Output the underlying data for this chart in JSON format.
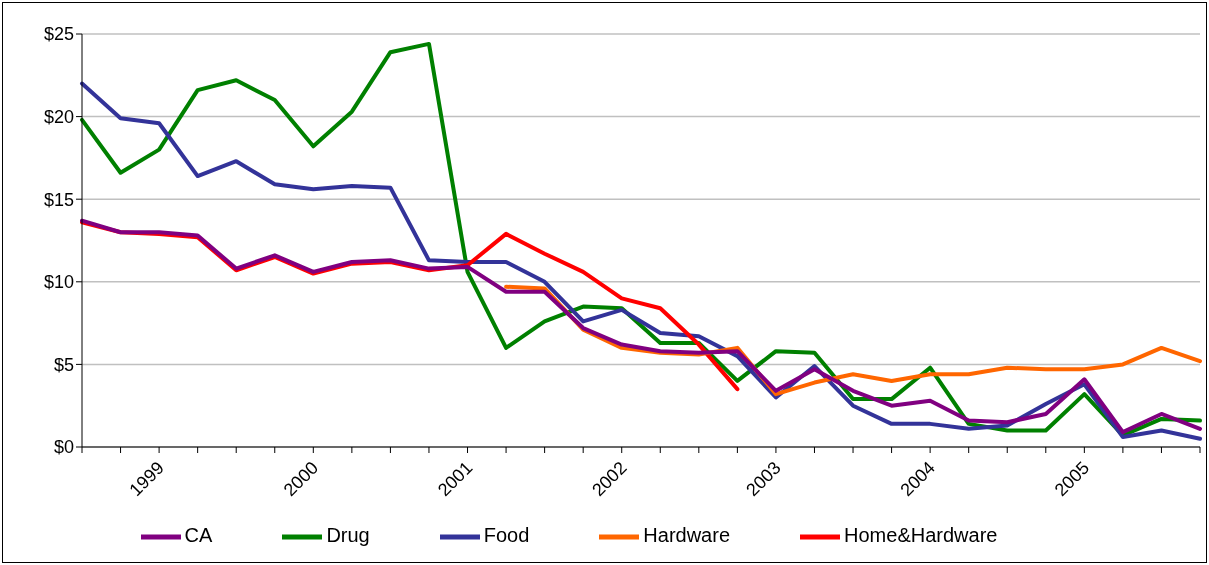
{
  "chart_data": {
    "type": "line",
    "categories": [
      null,
      null,
      "1999",
      null,
      null,
      null,
      "2000",
      null,
      null,
      null,
      "2001",
      null,
      null,
      null,
      "2002",
      null,
      null,
      null,
      "2003",
      null,
      null,
      null,
      "2004",
      null,
      null,
      null,
      "2005",
      null,
      null,
      null
    ],
    "series": [
      {
        "name": "Drug",
        "color": "#008000",
        "values": [
          19.8,
          16.6,
          18.0,
          21.6,
          22.2,
          21.0,
          18.2,
          20.3,
          23.9,
          24.4,
          10.6,
          6.0,
          7.6,
          8.5,
          8.4,
          6.3,
          6.3,
          4.0,
          5.8,
          5.7,
          2.9,
          2.9,
          4.8,
          1.4,
          1.0,
          1.0,
          3.2,
          0.7,
          1.7,
          1.6
        ]
      },
      {
        "name": "Food",
        "color": "#333399",
        "values": [
          22.0,
          19.9,
          19.6,
          16.4,
          17.3,
          15.9,
          15.6,
          15.8,
          15.7,
          11.3,
          11.2,
          11.2,
          10.0,
          7.6,
          8.3,
          6.9,
          6.7,
          5.5,
          3.0,
          4.9,
          2.5,
          1.4,
          1.4,
          1.1,
          1.3,
          2.6,
          3.8,
          0.6,
          1.0,
          0.5
        ]
      },
      {
        "name": "Home&Hardware",
        "color": "#ff0000",
        "values": [
          13.6,
          13.0,
          12.9,
          12.7,
          10.7,
          11.5,
          10.5,
          11.1,
          11.2,
          10.7,
          11.0,
          12.9,
          11.7,
          10.6,
          9.0,
          8.4,
          6.2,
          3.5,
          null,
          null,
          null,
          null,
          null,
          null,
          null,
          null,
          null,
          null,
          null,
          null
        ]
      },
      {
        "name": "Hardware",
        "color": "#ff6600",
        "values": [
          null,
          null,
          null,
          null,
          null,
          null,
          null,
          null,
          null,
          null,
          null,
          9.7,
          9.6,
          7.1,
          6.0,
          5.7,
          5.6,
          6.0,
          3.2,
          3.9,
          4.4,
          4.0,
          4.4,
          4.4,
          4.8,
          4.7,
          4.7,
          5.0,
          6.0,
          5.2
        ]
      },
      {
        "name": "CA",
        "color": "#800080",
        "values": [
          13.7,
          13.0,
          13.0,
          12.8,
          10.8,
          11.6,
          10.6,
          11.2,
          11.3,
          10.8,
          10.9,
          9.4,
          9.4,
          7.2,
          6.2,
          5.8,
          5.7,
          5.8,
          3.4,
          4.7,
          3.4,
          2.5,
          2.8,
          1.6,
          1.5,
          2.0,
          4.1,
          0.9,
          2.0,
          1.1
        ]
      }
    ],
    "ylim": [
      0,
      25
    ],
    "yticks": [
      {
        "value": 0,
        "label": "$0"
      },
      {
        "value": 5,
        "label": "$5"
      },
      {
        "value": 10,
        "label": "$10"
      },
      {
        "value": 15,
        "label": "$15"
      },
      {
        "value": 20,
        "label": "$20"
      },
      {
        "value": 25,
        "label": "$25"
      }
    ],
    "grid": "y",
    "legend": "bottom",
    "line_style": "solid"
  }
}
